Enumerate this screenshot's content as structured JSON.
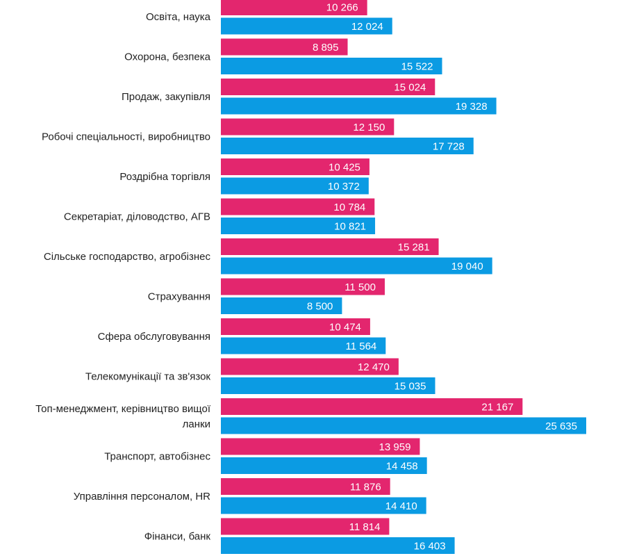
{
  "chart_data": {
    "type": "bar",
    "orientation": "horizontal",
    "categories": [
      [
        "Освіта, наука"
      ],
      [
        "Охорона, безпека"
      ],
      [
        "Продаж, закупівля"
      ],
      [
        "Робочі спеціальності, виробництво"
      ],
      [
        "Роздрібна торгівля"
      ],
      [
        "Секретаріат, діловодство, АГВ"
      ],
      [
        "Сільське господарство, агробізнес"
      ],
      [
        "Страхування"
      ],
      [
        "Сфера обслуговування"
      ],
      [
        "Телекомунікації та зв'язок"
      ],
      [
        "Топ-менеджмент, керівництво вищої",
        "ланки"
      ],
      [
        "Транспорт, автобізнес"
      ],
      [
        "Управління персоналом, HR"
      ],
      [
        "Фінанси, банк"
      ]
    ],
    "series": [
      {
        "color": "#e3266e",
        "values": [
          10266,
          8895,
          15024,
          12150,
          10425,
          10784,
          15281,
          11500,
          10474,
          12470,
          21167,
          13959,
          11876,
          11814
        ],
        "labels": [
          "10 266",
          "8 895",
          "15 024",
          "12 150",
          "10 425",
          "10 784",
          "15 281",
          "11 500",
          "10 474",
          "12 470",
          "21 167",
          "13 959",
          "11 876",
          "11 814"
        ]
      },
      {
        "color": "#0b9be3",
        "values": [
          12024,
          15522,
          19328,
          17728,
          10372,
          10821,
          19040,
          8500,
          11564,
          15035,
          25635,
          14458,
          14410,
          16403
        ],
        "labels": [
          "12 024",
          "15 522",
          "19 328",
          "17 728",
          "10 372",
          "10 821",
          "19 040",
          "8 500",
          "11 564",
          "15 035",
          "25 635",
          "14 458",
          "14 410",
          "16 403"
        ]
      }
    ],
    "xlim": [
      0,
      25635
    ],
    "grid": false,
    "legend": "none",
    "value_labels": "inside-end"
  }
}
